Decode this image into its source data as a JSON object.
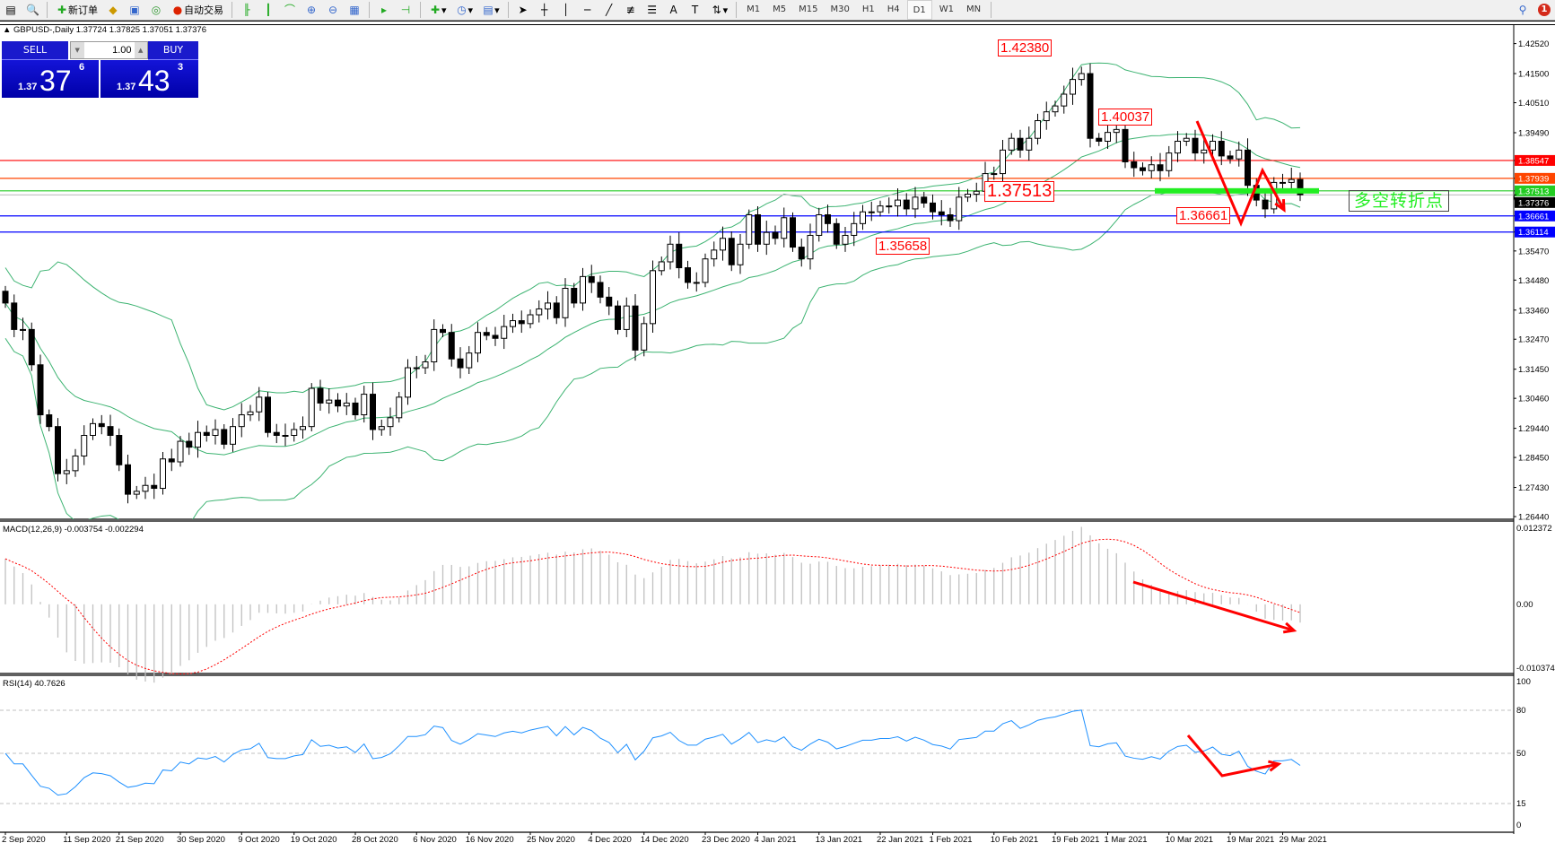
{
  "toolbar": {
    "new_order_label": "新订单",
    "auto_trading_label": "自动交易",
    "timeframes": [
      "M1",
      "M5",
      "M15",
      "M30",
      "H1",
      "H4",
      "D1",
      "W1",
      "MN"
    ],
    "active_timeframe": "D1",
    "notification_count": "1"
  },
  "chart_header": {
    "symbol_line": "GBPUSD-,Daily  1.37724 1.37825 1.37051 1.37376"
  },
  "trade_panel": {
    "sell_label": "SELL",
    "buy_label": "BUY",
    "lot_value": "1.00",
    "sell_price": {
      "small": "1.37",
      "big": "37",
      "sup": "6"
    },
    "buy_price": {
      "small": "1.37",
      "big": "43",
      "sup": "3"
    },
    "color": "#1414d8"
  },
  "indicators": {
    "macd_label": "MACD(12,26,9) -0.003754 -0.002294",
    "rsi_label": "RSI(14) 40.7626"
  },
  "annotations": {
    "note_text": "多空转折点",
    "price_labels": [
      {
        "text": "1.42380",
        "size": "normal"
      },
      {
        "text": "1.40037",
        "size": "normal"
      },
      {
        "text": "1.37513",
        "size": "big"
      },
      {
        "text": "1.36661",
        "size": "normal"
      },
      {
        "text": "1.35658",
        "size": "normal"
      }
    ]
  },
  "chart_data": {
    "type": "candlestick",
    "symbol": "GBPUSD-",
    "timeframe": "Daily",
    "price": {
      "ylim": [
        1.2644,
        1.4252
      ],
      "axis_ticks": [
        "1.42520",
        "1.41500",
        "1.40510",
        "1.39490",
        "1.38547",
        "1.37939",
        "1.37513",
        "1.37376",
        "1.36661",
        "1.36114",
        "1.35470",
        "1.34480",
        "1.33460",
        "1.32470",
        "1.31450",
        "1.30460",
        "1.29440",
        "1.28450",
        "1.27430",
        "1.26440"
      ],
      "close": [
        1.337,
        1.328,
        1.328,
        1.316,
        1.299,
        1.295,
        1.279,
        1.28,
        1.285,
        1.292,
        1.296,
        1.295,
        1.292,
        1.282,
        1.272,
        1.273,
        1.275,
        1.274,
        1.284,
        1.283,
        1.29,
        1.288,
        1.293,
        1.292,
        1.294,
        1.289,
        1.295,
        1.299,
        1.3,
        1.305,
        1.293,
        1.292,
        1.292,
        1.294,
        1.295,
        1.308,
        1.303,
        1.304,
        1.302,
        1.303,
        1.299,
        1.306,
        1.294,
        1.295,
        1.298,
        1.305,
        1.315,
        1.315,
        1.317,
        1.328,
        1.327,
        1.318,
        1.315,
        1.32,
        1.327,
        1.326,
        1.325,
        1.329,
        1.331,
        1.33,
        1.333,
        1.335,
        1.337,
        1.332,
        1.342,
        1.337,
        1.346,
        1.344,
        1.339,
        1.336,
        1.328,
        1.336,
        1.321,
        1.33,
        1.348,
        1.351,
        1.357,
        1.349,
        1.344,
        1.344,
        1.352,
        1.355,
        1.359,
        1.35,
        1.357,
        1.367,
        1.357,
        1.361,
        1.359,
        1.366,
        1.356,
        1.352,
        1.36,
        1.367,
        1.364,
        1.357,
        1.36,
        1.364,
        1.368,
        1.368,
        1.37,
        1.37,
        1.372,
        1.369,
        1.373,
        1.371,
        1.368,
        1.367,
        1.365,
        1.373,
        1.374,
        1.375,
        1.381,
        1.381,
        1.389,
        1.393,
        1.389,
        1.393,
        1.399,
        1.402,
        1.404,
        1.408,
        1.413,
        1.415,
        1.393,
        1.392,
        1.395,
        1.396,
        1.385,
        1.383,
        1.382,
        1.384,
        1.382,
        1.388,
        1.392,
        1.393,
        1.388,
        1.389,
        1.392,
        1.387,
        1.386,
        1.389,
        1.377,
        1.372,
        1.369,
        1.378,
        1.378,
        1.379,
        1.3738
      ],
      "bollinger": {
        "period": 20,
        "deviation": 2,
        "color": "#3cb371"
      },
      "horizontal_lines": [
        {
          "price": 1.38547,
          "label": "1.38547",
          "color": "#ff0000"
        },
        {
          "price": 1.37939,
          "label": "1.37939",
          "color": "#ff4500"
        },
        {
          "price": 1.37513,
          "label": "1.37513",
          "color": "#22cc22"
        },
        {
          "price": 1.37376,
          "label": "1.37376",
          "color": "#c0c0c0",
          "tag_color": "#000000"
        },
        {
          "price": 1.36661,
          "label": "1.36661",
          "color": "#0000ff"
        },
        {
          "price": 1.36114,
          "label": "1.36114",
          "color": "#0000ff"
        }
      ]
    },
    "macd": {
      "params": [
        12,
        26,
        9
      ],
      "ylim": [
        -0.010374,
        0.012372
      ],
      "axis_ticks": [
        "0.012372",
        "0.00",
        "-0.010374"
      ],
      "histogram_color": "#c0c0c0",
      "signal_color": "#ff0000"
    },
    "rsi": {
      "period": 14,
      "ylim": [
        0,
        100
      ],
      "levels": [
        80,
        50,
        15
      ],
      "axis_ticks": [
        "100",
        "80",
        "50",
        "15",
        "0"
      ],
      "color": "#1e90ff"
    },
    "x_tick_labels": [
      "2 Sep 2020",
      "11 Sep 2020",
      "21 Sep 2020",
      "30 Sep 2020",
      "9 Oct 2020",
      "19 Oct 2020",
      "28 Oct 2020",
      "6 Nov 2020",
      "16 Nov 2020",
      "25 Nov 2020",
      "4 Dec 2020",
      "14 Dec 2020",
      "23 Dec 2020",
      "4 Jan 2021",
      "13 Jan 2021",
      "22 Jan 2021",
      "1 Feb 2021",
      "10 Feb 2021",
      "19 Feb 2021",
      "1 Mar 2021",
      "10 Mar 2021",
      "19 Mar 2021",
      "29 Mar 2021"
    ]
  }
}
